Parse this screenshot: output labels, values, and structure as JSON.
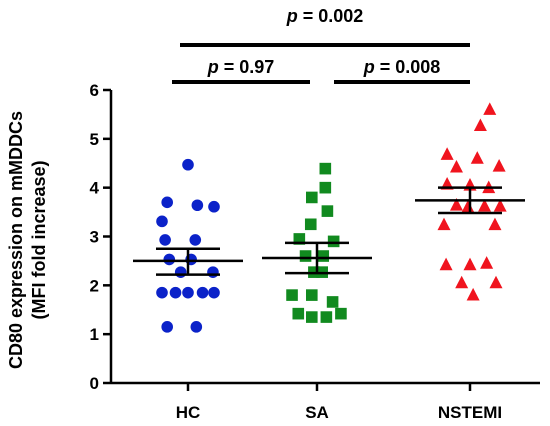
{
  "chart_data": {
    "type": "scatter",
    "ylabel_line1": "CD80 expression on mMDDCs",
    "ylabel_line2": "(MFI fold increase)",
    "ylim": [
      0,
      6
    ],
    "yticks": [
      0,
      1,
      2,
      3,
      4,
      5,
      6
    ],
    "categories": [
      "HC",
      "SA",
      "NSTEMI"
    ],
    "colors": {
      "HC": "#0b22c9",
      "SA": "#118a1f",
      "NSTEMI": "#f0141e"
    },
    "markers": {
      "HC": "circle",
      "SA": "square",
      "NSTEMI": "triangle"
    },
    "series": [
      {
        "name": "HC",
        "points": [
          [
            0.0,
            4.47
          ],
          [
            -0.2,
            3.7
          ],
          [
            0.09,
            3.64
          ],
          [
            0.25,
            3.61
          ],
          [
            -0.25,
            3.31
          ],
          [
            -0.22,
            2.93
          ],
          [
            0.07,
            2.93
          ],
          [
            -0.18,
            2.53
          ],
          [
            0.03,
            2.53
          ],
          [
            -0.07,
            2.27
          ],
          [
            0.24,
            2.27
          ],
          [
            -0.25,
            1.85
          ],
          [
            -0.12,
            1.85
          ],
          [
            0.0,
            1.85
          ],
          [
            0.14,
            1.85
          ],
          [
            0.25,
            1.85
          ],
          [
            -0.2,
            1.15
          ],
          [
            0.08,
            1.15
          ]
        ],
        "mean": 2.5,
        "sem_low": 2.22,
        "sem_high": 2.75
      },
      {
        "name": "SA",
        "points": [
          [
            0.08,
            4.39
          ],
          [
            0.08,
            4.0
          ],
          [
            -0.05,
            3.8
          ],
          [
            0.1,
            3.52
          ],
          [
            -0.06,
            3.25
          ],
          [
            -0.17,
            2.95
          ],
          [
            0.16,
            2.9
          ],
          [
            -0.11,
            2.6
          ],
          [
            0.06,
            2.6
          ],
          [
            -0.03,
            2.27
          ],
          [
            0.05,
            2.27
          ],
          [
            -0.24,
            1.8
          ],
          [
            -0.05,
            1.8
          ],
          [
            0.15,
            1.66
          ],
          [
            -0.18,
            1.42
          ],
          [
            0.23,
            1.42
          ],
          [
            -0.05,
            1.35
          ],
          [
            0.09,
            1.35
          ]
        ],
        "mean": 2.56,
        "sem_low": 2.25,
        "sem_high": 2.87
      },
      {
        "name": "NSTEMI",
        "points": [
          [
            0.19,
            5.6
          ],
          [
            0.1,
            5.27
          ],
          [
            -0.22,
            4.68
          ],
          [
            0.07,
            4.6
          ],
          [
            -0.13,
            4.42
          ],
          [
            0.28,
            4.44
          ],
          [
            -0.22,
            4.07
          ],
          [
            0.0,
            4.05
          ],
          [
            0.18,
            4.0
          ],
          [
            -0.13,
            3.64
          ],
          [
            -0.02,
            3.6
          ],
          [
            0.14,
            3.62
          ],
          [
            0.29,
            3.62
          ],
          [
            -0.25,
            3.24
          ],
          [
            0.24,
            3.24
          ],
          [
            -0.23,
            2.42
          ],
          [
            0.0,
            2.42
          ],
          [
            0.16,
            2.45
          ],
          [
            -0.08,
            2.05
          ],
          [
            0.25,
            2.05
          ],
          [
            0.03,
            1.8
          ]
        ],
        "mean": 3.74,
        "sem_low": 3.48,
        "sem_high": 4.0
      }
    ],
    "annotations": [
      {
        "label": "p",
        "value": " = 0.002",
        "from": "HC",
        "to": "NSTEMI",
        "level": 3
      },
      {
        "label": "p",
        "value": " = 0.97",
        "from": "HC",
        "to": "SA",
        "level": 2
      },
      {
        "label": "p",
        "value": " = 0.008",
        "from": "SA",
        "to": "NSTEMI",
        "level": 2
      }
    ],
    "grid": false
  }
}
